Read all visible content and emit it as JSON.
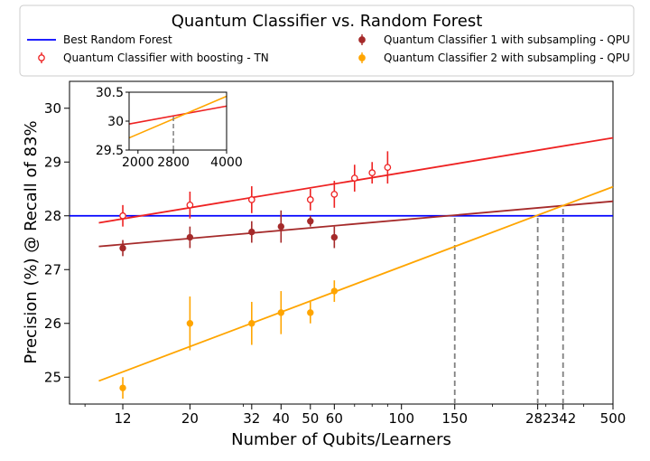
{
  "chart_data": {
    "type": "scatter",
    "title": "Quantum Classifier vs. Random Forest",
    "xlabel": "Number of Qubits/Learners",
    "ylabel": "Precision (%) @ Recall of 83%",
    "xscale": "log",
    "xlim": [
      8,
      500
    ],
    "ylim": [
      24.5,
      30.5
    ],
    "xticks": [
      12,
      20,
      32,
      40,
      50,
      60,
      100,
      150,
      282,
      342,
      500
    ],
    "xtick_labels": [
      "12",
      "20",
      "32",
      "40",
      "50",
      "60",
      "100",
      "150",
      "282",
      "342",
      "500"
    ],
    "yticks": [
      25,
      26,
      27,
      28,
      29,
      30
    ],
    "grid": false,
    "legend_placement": "top",
    "series": [
      {
        "name": "Best Random Forest",
        "kind": "hline",
        "y": 28.0,
        "color": "#0000ff"
      },
      {
        "name": "Quantum Classifier with boosting - TN",
        "kind": "errorbar-open",
        "color": "#ee2222",
        "x": [
          12,
          20,
          32,
          50,
          60,
          70,
          80,
          90
        ],
        "y": [
          28.0,
          28.2,
          28.3,
          28.3,
          28.4,
          28.7,
          28.8,
          28.9
        ],
        "yerr": [
          0.2,
          0.25,
          0.25,
          0.2,
          0.25,
          0.25,
          0.2,
          0.3
        ],
        "fit": {
          "x": [
            10,
            500
          ],
          "y": [
            27.87,
            29.45
          ]
        }
      },
      {
        "name": "Quantum Classifier 1 with subsampling - QPU",
        "kind": "errorbar-filled",
        "color": "#a52a2a",
        "x": [
          12,
          20,
          32,
          40,
          50,
          60
        ],
        "y": [
          27.4,
          27.6,
          27.7,
          27.8,
          27.9,
          27.6
        ],
        "yerr": [
          0.15,
          0.2,
          0.2,
          0.3,
          0.1,
          0.2
        ],
        "fit": {
          "x": [
            10,
            500
          ],
          "y": [
            27.43,
            28.27
          ]
        }
      },
      {
        "name": "Quantum Classifier 2 with subsampling - QPU",
        "kind": "errorbar-filled",
        "color": "#ffa500",
        "x": [
          12,
          20,
          32,
          40,
          50,
          60
        ],
        "y": [
          24.8,
          26.0,
          26.0,
          26.2,
          26.2,
          26.6
        ],
        "yerr": [
          0.2,
          0.5,
          0.4,
          0.4,
          0.2,
          0.2
        ],
        "fit": {
          "x": [
            10,
            500
          ],
          "y": [
            24.93,
            28.54
          ]
        }
      }
    ],
    "vlines": [
      {
        "x": 150,
        "ymin": 24.5,
        "ymax": 28.0
      },
      {
        "x": 282,
        "ymin": 24.5,
        "ymax": 28.0
      },
      {
        "x": 342,
        "ymin": 24.5,
        "ymax": 28.15
      }
    ],
    "inset": {
      "xlim": [
        1800,
        4000
      ],
      "ylim": [
        29.5,
        30.5
      ],
      "xticks": [
        2000,
        2800,
        4000
      ],
      "xtick_labels": [
        "2000",
        "2800",
        "4000"
      ],
      "yticks": [
        29.5,
        30,
        30.5
      ],
      "ytick_labels": [
        "29.5",
        "30",
        "30.5"
      ],
      "lines": [
        {
          "color": "#ee2222",
          "x": [
            1800,
            4000
          ],
          "y": [
            29.95,
            30.26
          ]
        },
        {
          "color": "#ffa500",
          "x": [
            1800,
            4000
          ],
          "y": [
            29.71,
            30.43
          ]
        }
      ],
      "vline": {
        "x": 2800,
        "ymin": 29.5,
        "ymax": 30.1
      }
    }
  }
}
